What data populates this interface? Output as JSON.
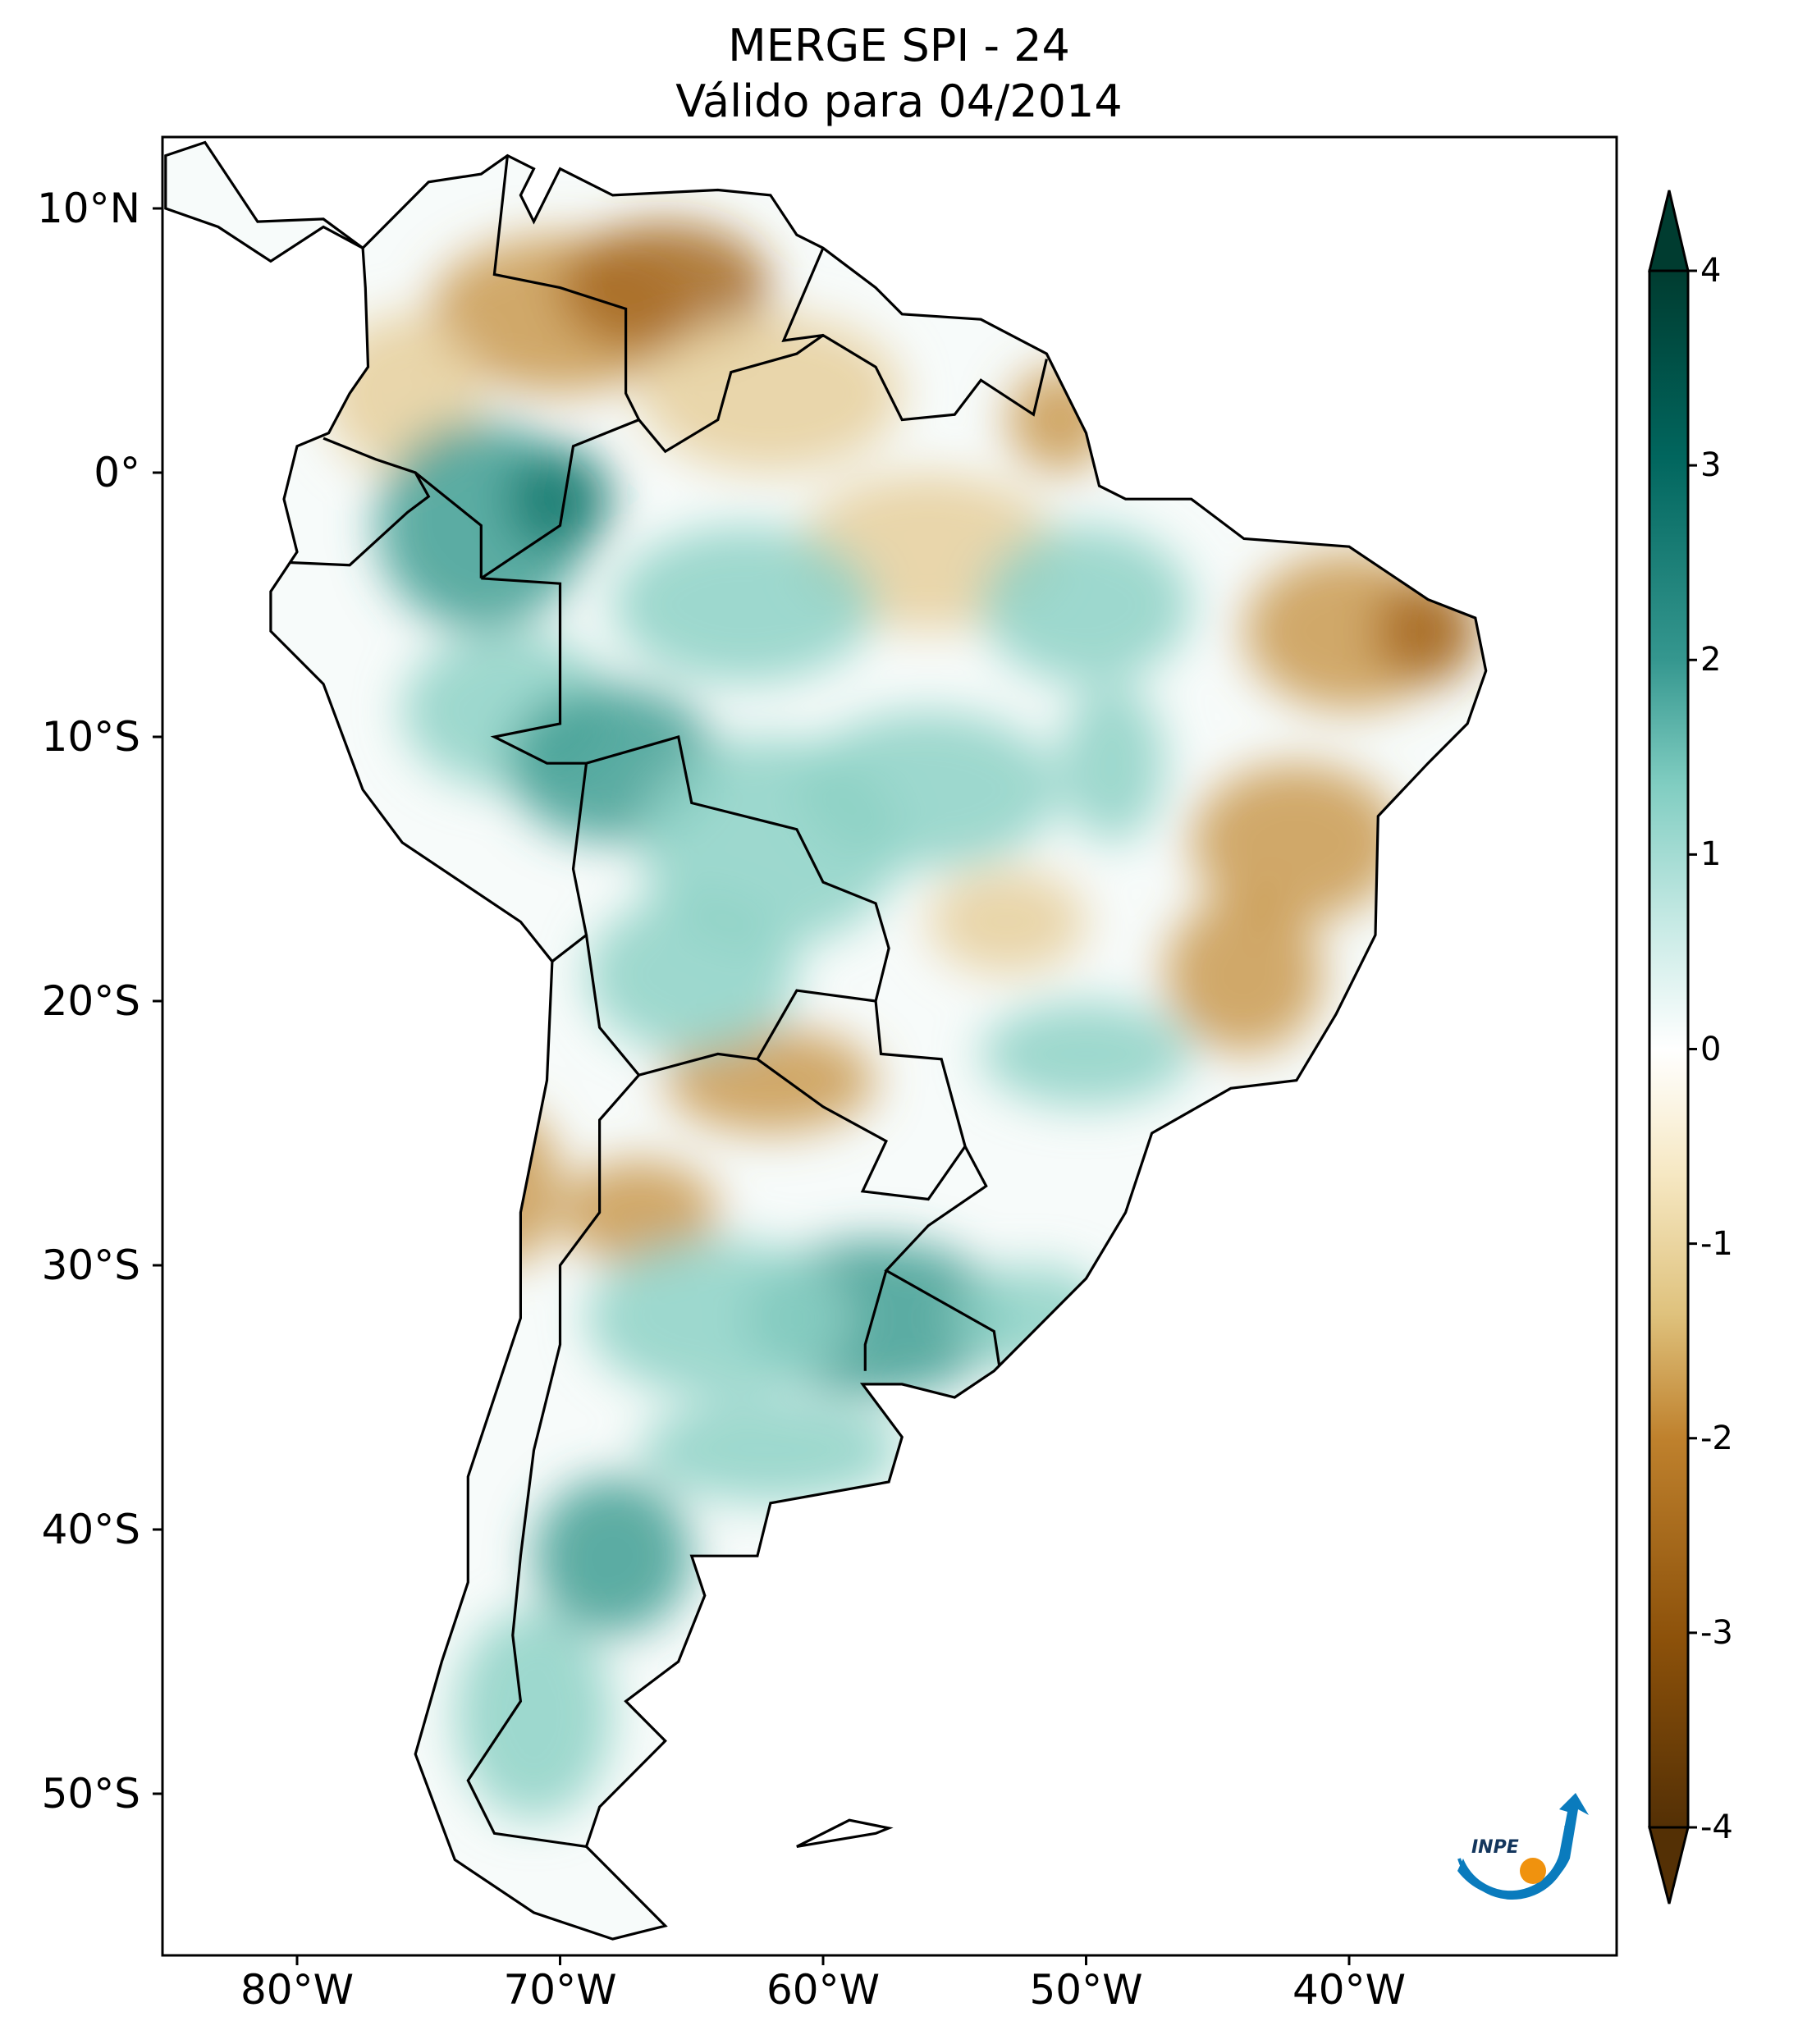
{
  "title": {
    "line1": "MERGE   SPI - 24",
    "line2": "Válido para 04/2014"
  },
  "chart_data": {
    "type": "heatmap",
    "title": "MERGE   SPI - 24 / Válido para 04/2014",
    "variable": "SPI - 24",
    "region": "South America",
    "lat_ticks": [
      "10°N",
      "0°",
      "10°S",
      "20°S",
      "30°S",
      "40°S",
      "50°S"
    ],
    "lat_values": [
      10,
      0,
      -10,
      -20,
      -30,
      -40,
      -50
    ],
    "lon_ticks": [
      "80°W",
      "70°W",
      "60°W",
      "50°W",
      "40°W"
    ],
    "lon_values": [
      -80,
      -70,
      -60,
      -50,
      -40
    ],
    "xlim": [
      -85,
      -30
    ],
    "ylim": [
      -56,
      12.7
    ],
    "colorbar": {
      "ticks": [
        "4",
        "3",
        "2",
        "1",
        "0",
        "-1",
        "-2",
        "-3",
        "-4"
      ],
      "range": [
        -4,
        4
      ],
      "extend": "both",
      "colormap": "BrBG",
      "colors": [
        "#543005",
        "#8c510a",
        "#bf812d",
        "#dfc27d",
        "#f6e8c3",
        "#ffffff",
        "#c7eae5",
        "#80cdc1",
        "#35978f",
        "#01665e",
        "#003c30"
      ]
    }
  },
  "logo": {
    "text": "INPE",
    "blue": "#0a7bbd",
    "orange": "#f0920e"
  }
}
